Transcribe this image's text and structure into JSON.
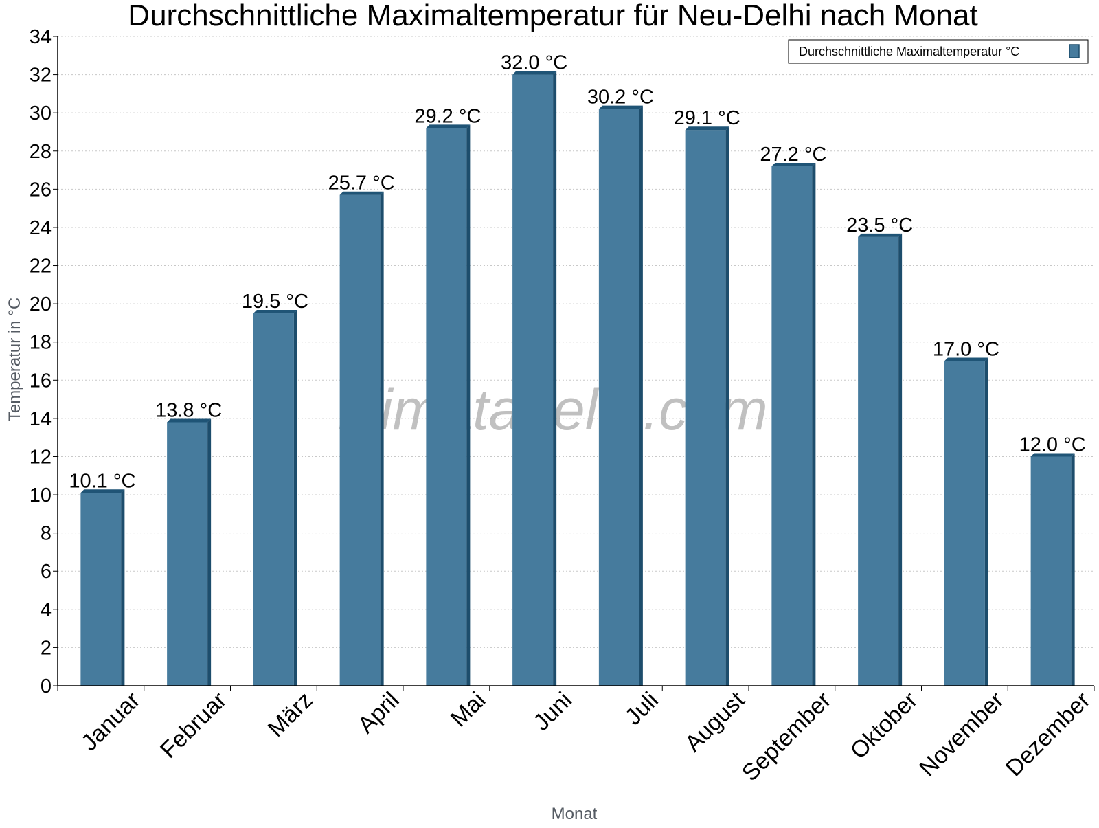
{
  "chart_data": {
    "type": "bar",
    "title": "Durchschnittliche Maximaltemperatur für Neu-Delhi nach Monat",
    "xlabel": "Monat",
    "ylabel": "Temperatur in °C",
    "categories": [
      "Januar",
      "Februar",
      "März",
      "April",
      "Mai",
      "Juni",
      "Juli",
      "August",
      "September",
      "Oktober",
      "November",
      "Dezember"
    ],
    "series": [
      {
        "name": "Durchschnittliche Maximaltemperatur °C",
        "values": [
          10.1,
          13.8,
          19.5,
          25.7,
          29.2,
          32.0,
          30.2,
          29.1,
          27.2,
          23.5,
          17.0,
          12.0
        ],
        "data_labels": [
          "10.1 °C",
          "13.8 °C",
          "19.5 °C",
          "25.7 °C",
          "29.2 °C",
          "32.0 °C",
          "30.2 °C",
          "29.1 °C",
          "27.2 °C",
          "23.5 °C",
          "17.0 °C",
          "12.0 °C"
        ]
      }
    ],
    "ylim": [
      0,
      34
    ],
    "yticks": [
      0,
      2,
      4,
      6,
      8,
      10,
      12,
      14,
      16,
      18,
      20,
      22,
      24,
      26,
      28,
      30,
      32,
      34
    ],
    "grid": true,
    "legend_position": "top-right"
  },
  "watermark": "klimatabelle.com",
  "colors": {
    "bar_face": "#467b9d",
    "bar_side": "#1d4d6c",
    "bar_top": "#1f5476",
    "grid": "#c8c8c8",
    "axis": "#000000"
  }
}
